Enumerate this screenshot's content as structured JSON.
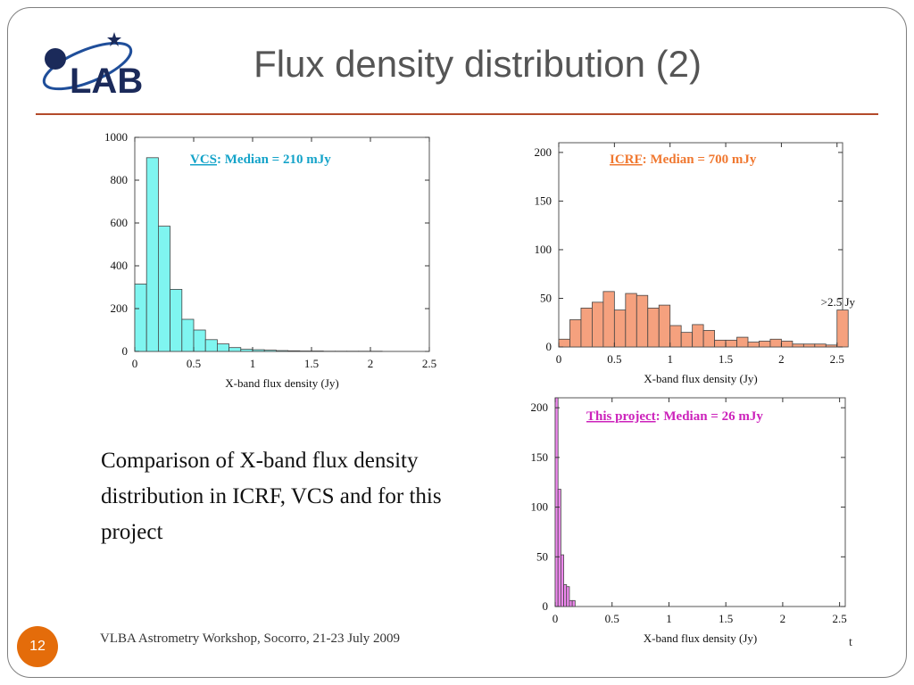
{
  "slide": {
    "title": "Flux density distribution (2)",
    "body_text": "Comparison of X-band flux density distribution in ICRF, VCS and for this project",
    "footer": "VLBA Astrometry Workshop, Socorro, 21-23 July 2009",
    "page_number": "12",
    "stray_char": "t",
    "logo_text": "LAB"
  },
  "colors": {
    "title": "#555555",
    "rule": "#b34a2a",
    "page_badge": "#e46c0a",
    "vcs_fill": "#7ff5f0",
    "vcs_label": "#14a3c9",
    "icrf_fill": "#f5a17e",
    "icrf_label": "#f07830",
    "proj_fill": "#ee88ee",
    "proj_label": "#cc22bb"
  },
  "chart_data": [
    {
      "id": "vcs",
      "type": "bar",
      "annotation_link": "VCS",
      "annotation_rest": ": Median = 210 mJy",
      "xlabel": "X-band flux density (Jy)",
      "ylabel": "",
      "xlim": [
        0,
        2.5
      ],
      "ylim": [
        0,
        1000
      ],
      "xticks": [
        0,
        0.5,
        1,
        1.5,
        2,
        2.5
      ],
      "xtick_labels": [
        "0",
        "0.5",
        "1",
        "1.5",
        "2",
        "2.5"
      ],
      "yticks": [
        0,
        200,
        400,
        600,
        800,
        1000
      ],
      "ytick_labels": [
        "0",
        "200",
        "400",
        "600",
        "800",
        "1000"
      ],
      "bin_width": 0.1,
      "values": [
        315,
        905,
        585,
        290,
        150,
        100,
        55,
        35,
        18,
        10,
        8,
        6,
        4,
        3,
        2,
        2,
        1,
        1,
        1,
        1,
        1,
        0,
        0,
        0,
        0
      ]
    },
    {
      "id": "icrf",
      "type": "bar",
      "annotation_link": "ICRF",
      "annotation_rest": ":  Median = 700 mJy",
      "side_note": ">2.5 Jy",
      "xlabel": "X-band flux density (Jy)",
      "ylabel": "",
      "xlim": [
        0,
        2.55
      ],
      "ylim": [
        0,
        210
      ],
      "xticks": [
        0,
        0.5,
        1,
        1.5,
        2,
        2.5
      ],
      "xtick_labels": [
        "0",
        "0.5",
        "1",
        "1.5",
        "2",
        "2.5"
      ],
      "yticks": [
        0,
        50,
        100,
        150,
        200
      ],
      "ytick_labels": [
        "0",
        "50",
        "100",
        "150",
        "200"
      ],
      "bin_width": 0.1,
      "values": [
        8,
        28,
        40,
        46,
        57,
        38,
        55,
        53,
        40,
        43,
        22,
        15,
        23,
        17,
        7,
        7,
        10,
        5,
        6,
        8,
        6,
        3,
        3,
        3,
        2,
        38
      ]
    },
    {
      "id": "this-project",
      "type": "bar",
      "annotation_link": "This project",
      "annotation_rest": ": Median = 26 mJy",
      "xlabel": "X-band flux density (Jy)",
      "ylabel": "",
      "xlim": [
        0,
        2.55
      ],
      "ylim": [
        0,
        210
      ],
      "xticks": [
        0,
        0.5,
        1,
        1.5,
        2,
        2.5
      ],
      "xtick_labels": [
        "0",
        "0.5",
        "1",
        "1.5",
        "2",
        "2.5"
      ],
      "yticks": [
        0,
        50,
        100,
        150,
        200
      ],
      "ytick_labels": [
        "0",
        "50",
        "100",
        "150",
        "200"
      ],
      "bin_width": 0.025,
      "values": [
        210,
        118,
        52,
        22,
        20,
        6,
        6
      ]
    }
  ]
}
